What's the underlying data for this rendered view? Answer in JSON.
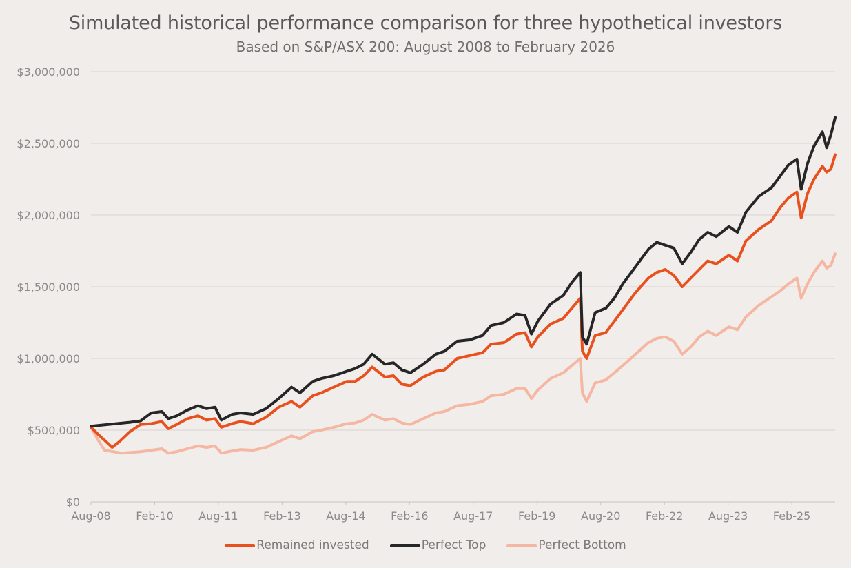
{
  "chart_data": {
    "type": "line",
    "title": "Simulated historical performance comparison for three hypothetical investors",
    "subtitle": "Based on S&P/ASX 200: August 2008 to February 2026",
    "xlabel": "",
    "ylabel": "",
    "ylim": [
      0,
      3000000
    ],
    "yticks": [
      "$0",
      "$500,000",
      "$1,000,000",
      "$1,500,000",
      "$2,000,000",
      "$2,500,000",
      "$3,000,000"
    ],
    "x_tick_labels": [
      "Aug-08",
      "Feb-10",
      "Aug-11",
      "Feb-13",
      "Aug-14",
      "Feb-16",
      "Aug-17",
      "Feb-19",
      "Aug-20",
      "Feb-22",
      "Aug-23",
      "Feb-25"
    ],
    "x_start": 2008.58,
    "x_end": 2026.1,
    "grid": true,
    "legend_position": "bottom",
    "series": [
      {
        "name": "Remained invested",
        "color": "#e8501e",
        "width": 4,
        "points": [
          [
            2008.58,
            520000
          ],
          [
            2008.75,
            470000
          ],
          [
            2008.9,
            430000
          ],
          [
            2009.08,
            380000
          ],
          [
            2009.25,
            420000
          ],
          [
            2009.5,
            490000
          ],
          [
            2009.75,
            540000
          ],
          [
            2010.0,
            545000
          ],
          [
            2010.25,
            560000
          ],
          [
            2010.4,
            510000
          ],
          [
            2010.6,
            540000
          ],
          [
            2010.85,
            580000
          ],
          [
            2011.1,
            600000
          ],
          [
            2011.3,
            570000
          ],
          [
            2011.5,
            580000
          ],
          [
            2011.65,
            520000
          ],
          [
            2011.9,
            545000
          ],
          [
            2012.1,
            560000
          ],
          [
            2012.4,
            545000
          ],
          [
            2012.7,
            590000
          ],
          [
            2013.0,
            660000
          ],
          [
            2013.3,
            700000
          ],
          [
            2013.5,
            660000
          ],
          [
            2013.8,
            740000
          ],
          [
            2014.0,
            760000
          ],
          [
            2014.3,
            800000
          ],
          [
            2014.6,
            840000
          ],
          [
            2014.8,
            840000
          ],
          [
            2015.0,
            880000
          ],
          [
            2015.2,
            940000
          ],
          [
            2015.5,
            870000
          ],
          [
            2015.7,
            880000
          ],
          [
            2015.9,
            820000
          ],
          [
            2016.1,
            810000
          ],
          [
            2016.4,
            870000
          ],
          [
            2016.7,
            910000
          ],
          [
            2016.9,
            920000
          ],
          [
            2017.2,
            1000000
          ],
          [
            2017.5,
            1020000
          ],
          [
            2017.8,
            1040000
          ],
          [
            2018.0,
            1100000
          ],
          [
            2018.3,
            1110000
          ],
          [
            2018.6,
            1170000
          ],
          [
            2018.8,
            1180000
          ],
          [
            2018.95,
            1080000
          ],
          [
            2019.1,
            1150000
          ],
          [
            2019.4,
            1240000
          ],
          [
            2019.7,
            1280000
          ],
          [
            2019.9,
            1350000
          ],
          [
            2020.1,
            1420000
          ],
          [
            2020.15,
            1050000
          ],
          [
            2020.25,
            1000000
          ],
          [
            2020.45,
            1160000
          ],
          [
            2020.7,
            1180000
          ],
          [
            2020.9,
            1260000
          ],
          [
            2021.1,
            1340000
          ],
          [
            2021.4,
            1460000
          ],
          [
            2021.7,
            1560000
          ],
          [
            2021.9,
            1600000
          ],
          [
            2022.1,
            1620000
          ],
          [
            2022.3,
            1580000
          ],
          [
            2022.5,
            1500000
          ],
          [
            2022.7,
            1560000
          ],
          [
            2022.9,
            1620000
          ],
          [
            2023.1,
            1680000
          ],
          [
            2023.3,
            1660000
          ],
          [
            2023.6,
            1720000
          ],
          [
            2023.8,
            1680000
          ],
          [
            2024.0,
            1820000
          ],
          [
            2024.3,
            1900000
          ],
          [
            2024.6,
            1960000
          ],
          [
            2024.8,
            2050000
          ],
          [
            2025.0,
            2120000
          ],
          [
            2025.2,
            2160000
          ],
          [
            2025.3,
            1980000
          ],
          [
            2025.45,
            2150000
          ],
          [
            2025.6,
            2250000
          ],
          [
            2025.8,
            2340000
          ],
          [
            2025.9,
            2300000
          ],
          [
            2026.0,
            2320000
          ],
          [
            2026.1,
            2420000
          ]
        ]
      },
      {
        "name": "Perfect Top",
        "color": "#262626",
        "width": 4,
        "points": [
          [
            2008.58,
            528000
          ],
          [
            2009.5,
            555000
          ],
          [
            2009.75,
            565000
          ],
          [
            2010.0,
            620000
          ],
          [
            2010.25,
            630000
          ],
          [
            2010.4,
            580000
          ],
          [
            2010.6,
            600000
          ],
          [
            2010.85,
            640000
          ],
          [
            2011.1,
            670000
          ],
          [
            2011.3,
            650000
          ],
          [
            2011.5,
            660000
          ],
          [
            2011.65,
            570000
          ],
          [
            2011.9,
            610000
          ],
          [
            2012.1,
            620000
          ],
          [
            2012.4,
            610000
          ],
          [
            2012.7,
            650000
          ],
          [
            2013.0,
            720000
          ],
          [
            2013.3,
            800000
          ],
          [
            2013.5,
            760000
          ],
          [
            2013.8,
            840000
          ],
          [
            2014.0,
            860000
          ],
          [
            2014.3,
            880000
          ],
          [
            2014.6,
            910000
          ],
          [
            2014.8,
            930000
          ],
          [
            2015.0,
            960000
          ],
          [
            2015.2,
            1030000
          ],
          [
            2015.5,
            960000
          ],
          [
            2015.7,
            970000
          ],
          [
            2015.9,
            920000
          ],
          [
            2016.1,
            900000
          ],
          [
            2016.4,
            960000
          ],
          [
            2016.7,
            1030000
          ],
          [
            2016.9,
            1050000
          ],
          [
            2017.2,
            1120000
          ],
          [
            2017.5,
            1130000
          ],
          [
            2017.8,
            1160000
          ],
          [
            2018.0,
            1230000
          ],
          [
            2018.3,
            1250000
          ],
          [
            2018.6,
            1310000
          ],
          [
            2018.8,
            1300000
          ],
          [
            2018.95,
            1170000
          ],
          [
            2019.1,
            1260000
          ],
          [
            2019.4,
            1380000
          ],
          [
            2019.7,
            1440000
          ],
          [
            2019.9,
            1530000
          ],
          [
            2020.1,
            1600000
          ],
          [
            2020.15,
            1150000
          ],
          [
            2020.25,
            1100000
          ],
          [
            2020.45,
            1320000
          ],
          [
            2020.7,
            1350000
          ],
          [
            2020.9,
            1420000
          ],
          [
            2021.1,
            1520000
          ],
          [
            2021.4,
            1640000
          ],
          [
            2021.7,
            1760000
          ],
          [
            2021.9,
            1810000
          ],
          [
            2022.1,
            1790000
          ],
          [
            2022.3,
            1770000
          ],
          [
            2022.5,
            1660000
          ],
          [
            2022.7,
            1740000
          ],
          [
            2022.9,
            1830000
          ],
          [
            2023.1,
            1880000
          ],
          [
            2023.3,
            1850000
          ],
          [
            2023.6,
            1920000
          ],
          [
            2023.8,
            1880000
          ],
          [
            2024.0,
            2020000
          ],
          [
            2024.3,
            2130000
          ],
          [
            2024.6,
            2190000
          ],
          [
            2024.8,
            2270000
          ],
          [
            2025.0,
            2350000
          ],
          [
            2025.2,
            2390000
          ],
          [
            2025.3,
            2180000
          ],
          [
            2025.45,
            2360000
          ],
          [
            2025.6,
            2480000
          ],
          [
            2025.8,
            2580000
          ],
          [
            2025.9,
            2470000
          ],
          [
            2026.0,
            2560000
          ],
          [
            2026.1,
            2680000
          ]
        ]
      },
      {
        "name": "Perfect Bottom",
        "color": "#f5b7a2",
        "width": 4,
        "points": [
          [
            2008.58,
            520000
          ],
          [
            2008.75,
            430000
          ],
          [
            2008.9,
            360000
          ],
          [
            2009.1,
            350000
          ],
          [
            2009.3,
            340000
          ],
          [
            2009.75,
            350000
          ],
          [
            2010.0,
            360000
          ],
          [
            2010.25,
            370000
          ],
          [
            2010.4,
            340000
          ],
          [
            2010.6,
            350000
          ],
          [
            2010.85,
            370000
          ],
          [
            2011.1,
            390000
          ],
          [
            2011.3,
            380000
          ],
          [
            2011.5,
            390000
          ],
          [
            2011.65,
            340000
          ],
          [
            2011.9,
            355000
          ],
          [
            2012.1,
            365000
          ],
          [
            2012.4,
            360000
          ],
          [
            2012.7,
            380000
          ],
          [
            2013.0,
            420000
          ],
          [
            2013.3,
            460000
          ],
          [
            2013.5,
            440000
          ],
          [
            2013.8,
            490000
          ],
          [
            2014.0,
            500000
          ],
          [
            2014.3,
            520000
          ],
          [
            2014.6,
            545000
          ],
          [
            2014.8,
            550000
          ],
          [
            2015.0,
            570000
          ],
          [
            2015.2,
            610000
          ],
          [
            2015.5,
            570000
          ],
          [
            2015.7,
            580000
          ],
          [
            2015.9,
            550000
          ],
          [
            2016.1,
            540000
          ],
          [
            2016.4,
            580000
          ],
          [
            2016.7,
            620000
          ],
          [
            2016.9,
            630000
          ],
          [
            2017.2,
            670000
          ],
          [
            2017.5,
            680000
          ],
          [
            2017.8,
            700000
          ],
          [
            2018.0,
            740000
          ],
          [
            2018.3,
            750000
          ],
          [
            2018.6,
            790000
          ],
          [
            2018.8,
            790000
          ],
          [
            2018.95,
            720000
          ],
          [
            2019.1,
            780000
          ],
          [
            2019.4,
            860000
          ],
          [
            2019.7,
            900000
          ],
          [
            2019.9,
            950000
          ],
          [
            2020.1,
            1000000
          ],
          [
            2020.15,
            760000
          ],
          [
            2020.25,
            700000
          ],
          [
            2020.45,
            830000
          ],
          [
            2020.7,
            850000
          ],
          [
            2020.9,
            900000
          ],
          [
            2021.1,
            950000
          ],
          [
            2021.4,
            1030000
          ],
          [
            2021.7,
            1110000
          ],
          [
            2021.9,
            1140000
          ],
          [
            2022.1,
            1150000
          ],
          [
            2022.3,
            1120000
          ],
          [
            2022.5,
            1030000
          ],
          [
            2022.7,
            1080000
          ],
          [
            2022.9,
            1150000
          ],
          [
            2023.1,
            1190000
          ],
          [
            2023.3,
            1160000
          ],
          [
            2023.6,
            1220000
          ],
          [
            2023.8,
            1200000
          ],
          [
            2024.0,
            1290000
          ],
          [
            2024.3,
            1370000
          ],
          [
            2024.6,
            1430000
          ],
          [
            2024.8,
            1470000
          ],
          [
            2025.0,
            1520000
          ],
          [
            2025.2,
            1560000
          ],
          [
            2025.3,
            1420000
          ],
          [
            2025.45,
            1520000
          ],
          [
            2025.6,
            1600000
          ],
          [
            2025.8,
            1680000
          ],
          [
            2025.9,
            1630000
          ],
          [
            2026.0,
            1650000
          ],
          [
            2026.1,
            1730000
          ]
        ]
      }
    ]
  }
}
